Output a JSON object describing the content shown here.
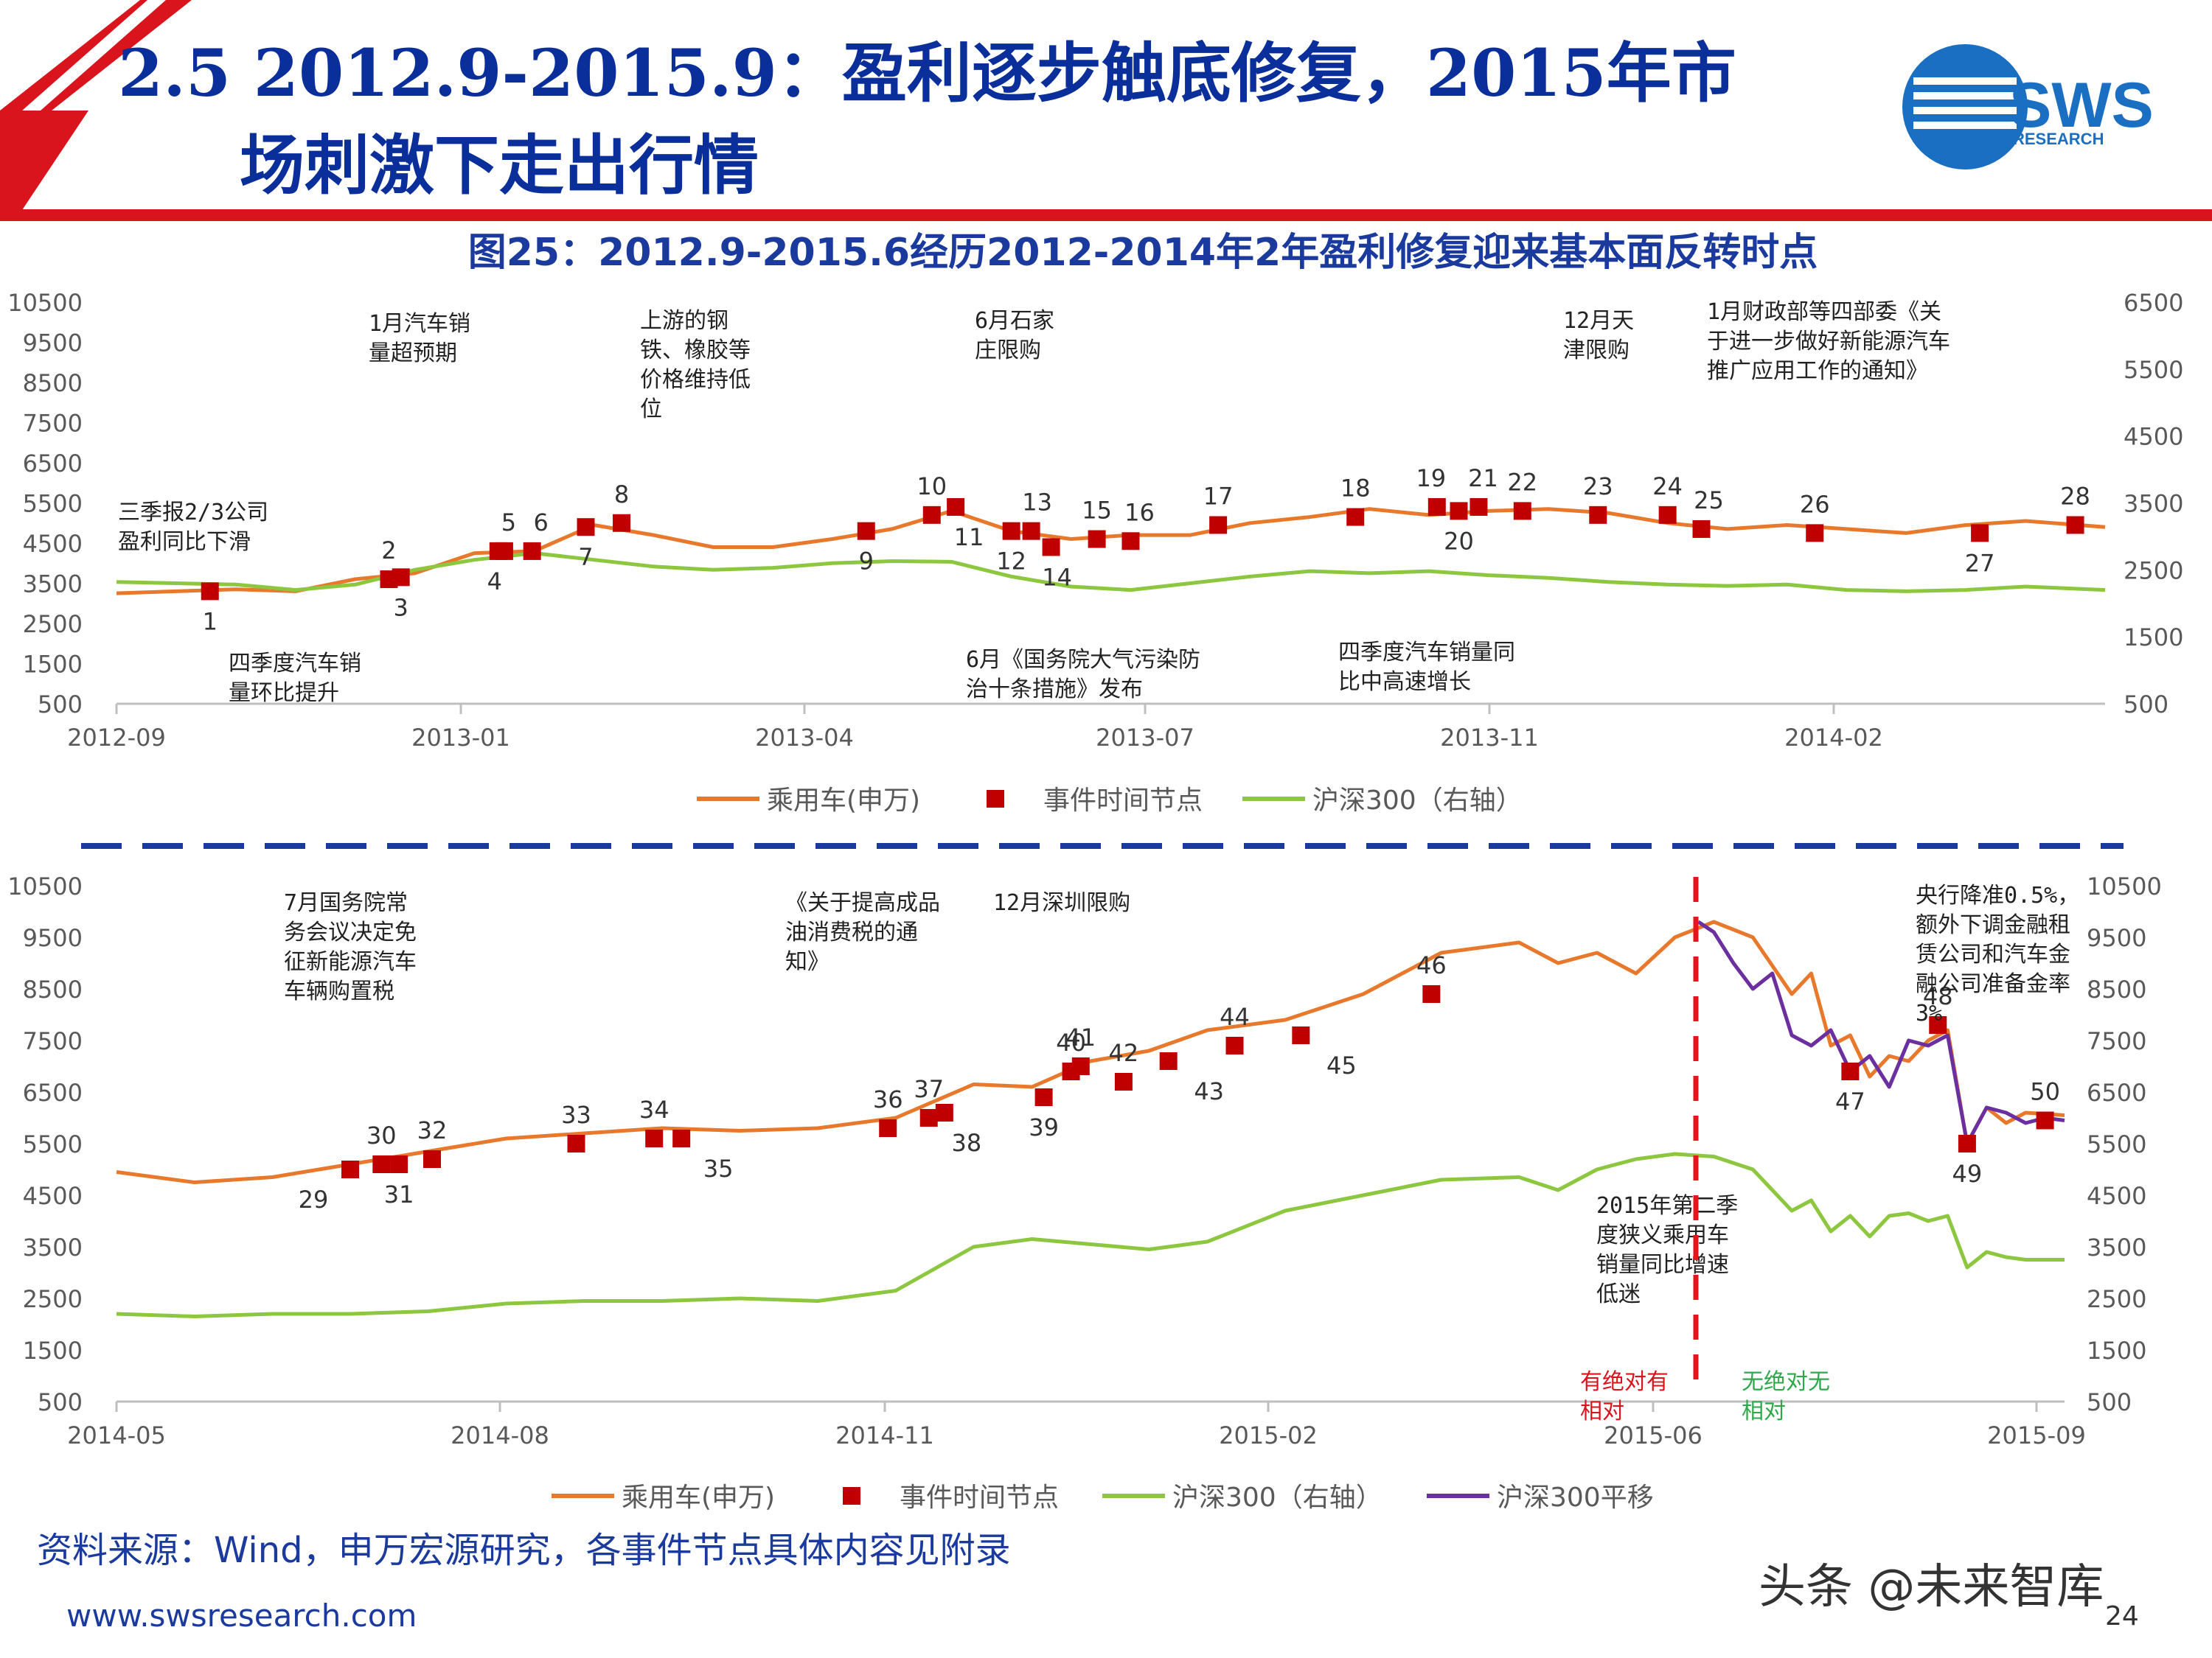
{
  "header": {
    "title_line1": "2.5 2012.9-2015.9：盈利逐步触底修复，2015年市",
    "title_line2": "场刺激下走出行情",
    "logo_text": "SWS",
    "logo_sub": "RESEARCH",
    "colors": {
      "red": "#d9141d",
      "blue": "#0a2f9b"
    }
  },
  "figure_title": "图25：2012.9-2015.6经历2012-2014年2年盈利修复迎来基本面反转时点",
  "source": "资料来源：Wind，申万宏源研究，各事件节点具体内容见附录",
  "website": "www.swsresearch.com",
  "page_number": "24",
  "watermark": "头条 @未来智库",
  "chart_data": [
    {
      "type": "line",
      "colors": {
        "car": "#e8792c",
        "hs300": "#8dc63f",
        "event": "#c00000"
      },
      "left_axis": {
        "ticks": [
          10500,
          9500,
          8500,
          7500,
          6500,
          5500,
          4500,
          3500,
          2500,
          1500,
          500
        ],
        "range": [
          500,
          10500
        ]
      },
      "right_axis": {
        "ticks": [
          6500,
          5500,
          4500,
          3500,
          2500,
          1500,
          500
        ],
        "range": [
          500,
          6500
        ]
      },
      "x_ticks": [
        "2012-09",
        "2013-01",
        "2013-04",
        "2013-07",
        "2013-11",
        "2014-02"
      ],
      "legend": [
        "乘用车(申万)",
        "事件时间节点",
        "沪深300（右轴）"
      ],
      "series": [
        {
          "name": "乘用车(申万)",
          "x": [
            0,
            0.03,
            0.06,
            0.09,
            0.12,
            0.15,
            0.18,
            0.21,
            0.24,
            0.27,
            0.3,
            0.33,
            0.36,
            0.39,
            0.42,
            0.45,
            0.48,
            0.51,
            0.54,
            0.57,
            0.6,
            0.63,
            0.66,
            0.69,
            0.72,
            0.75,
            0.78,
            0.81,
            0.84,
            0.87,
            0.9,
            0.93,
            0.96,
            1
          ],
          "y": [
            3250,
            3300,
            3350,
            3300,
            3600,
            3750,
            4250,
            4300,
            4950,
            4700,
            4400,
            4400,
            4600,
            4850,
            5300,
            4800,
            4600,
            4700,
            4700,
            5000,
            5150,
            5350,
            5200,
            5300,
            5350,
            5250,
            5000,
            4850,
            4950,
            4850,
            4750,
            4950,
            5050,
            4900
          ]
        },
        {
          "name": "沪深300（右轴）",
          "x": [
            0,
            0.03,
            0.06,
            0.09,
            0.12,
            0.15,
            0.18,
            0.21,
            0.24,
            0.27,
            0.3,
            0.33,
            0.36,
            0.39,
            0.42,
            0.45,
            0.48,
            0.51,
            0.54,
            0.57,
            0.6,
            0.63,
            0.66,
            0.69,
            0.72,
            0.75,
            0.78,
            0.81,
            0.84,
            0.87,
            0.9,
            0.93,
            0.96,
            1
          ],
          "y": [
            2320,
            2300,
            2280,
            2200,
            2280,
            2500,
            2650,
            2750,
            2650,
            2550,
            2500,
            2530,
            2600,
            2630,
            2620,
            2400,
            2250,
            2200,
            2300,
            2400,
            2480,
            2450,
            2480,
            2420,
            2380,
            2320,
            2280,
            2260,
            2280,
            2200,
            2180,
            2200,
            2250,
            2200
          ]
        }
      ],
      "events": [
        {
          "label": "1",
          "x": 0.047,
          "y": 3300
        },
        {
          "label": "2",
          "x": 0.137,
          "y": 3600
        },
        {
          "label": "3",
          "x": 0.143,
          "y": 3650
        },
        {
          "label": "4",
          "x": 0.192,
          "y": 4300
        },
        {
          "label": "5",
          "x": 0.195,
          "y": 4300
        },
        {
          "label": "6",
          "x": 0.209,
          "y": 4300
        },
        {
          "label": "7",
          "x": 0.236,
          "y": 4900
        },
        {
          "label": "8",
          "x": 0.254,
          "y": 5000
        },
        {
          "label": "9",
          "x": 0.377,
          "y": 4800
        },
        {
          "label": "10",
          "x": 0.41,
          "y": 5200
        },
        {
          "label": "11",
          "x": 0.422,
          "y": 5400
        },
        {
          "label": "12",
          "x": 0.45,
          "y": 4800
        },
        {
          "label": "13",
          "x": 0.46,
          "y": 4800
        },
        {
          "label": "14",
          "x": 0.47,
          "y": 4400
        },
        {
          "label": "15",
          "x": 0.493,
          "y": 4600
        },
        {
          "label": "16",
          "x": 0.51,
          "y": 4550
        },
        {
          "label": "17",
          "x": 0.554,
          "y": 4950
        },
        {
          "label": "18",
          "x": 0.623,
          "y": 5150
        },
        {
          "label": "19",
          "x": 0.664,
          "y": 5400
        },
        {
          "label": "20",
          "x": 0.675,
          "y": 5300
        },
        {
          "label": "21",
          "x": 0.685,
          "y": 5400
        },
        {
          "label": "22",
          "x": 0.707,
          "y": 5300
        },
        {
          "label": "23",
          "x": 0.745,
          "y": 5200
        },
        {
          "label": "24",
          "x": 0.78,
          "y": 5200
        },
        {
          "label": "25",
          "x": 0.797,
          "y": 4850
        },
        {
          "label": "26",
          "x": 0.854,
          "y": 4750
        },
        {
          "label": "27",
          "x": 0.937,
          "y": 4750
        },
        {
          "label": "28",
          "x": 0.985,
          "y": 4950
        }
      ],
      "annotations": [
        "1月汽车销\n量超预期",
        "上游的钢\n铁、橡胶等\n价格维持低\n位",
        "6月石家\n庄限购",
        "12月天\n津限购",
        "1月财政部等四部委《关\n于进一步做好新能源汽车\n推广应用工作的通知》",
        "三季报2/3公司\n盈利同比下滑",
        "四季度汽车销\n量环比提升",
        "6月《国务院大气污染防\n治十条措施》发布",
        "四季度汽车销量同\n比中高速增长"
      ]
    },
    {
      "type": "line",
      "colors": {
        "car": "#e8792c",
        "hs300": "#8dc63f",
        "hs300_shift": "#6b2fa0",
        "event": "#c00000",
        "divider": "#e8141d"
      },
      "left_axis": {
        "ticks": [
          10500,
          9500,
          8500,
          7500,
          6500,
          5500,
          4500,
          3500,
          2500,
          1500,
          500
        ],
        "range": [
          500,
          10500
        ]
      },
      "right_axis": {
        "ticks": [
          10500,
          9500,
          8500,
          7500,
          6500,
          5500,
          4500,
          3500,
          2500,
          1500,
          500
        ],
        "range": [
          500,
          10500
        ]
      },
      "x_ticks": [
        "2014-05",
        "2014-08",
        "2014-11",
        "2015-02",
        "2015-06",
        "2015-09"
      ],
      "legend": [
        "乘用车(申万)",
        "事件时间节点",
        "沪深300（右轴）",
        "沪深300平移"
      ],
      "series": [
        {
          "name": "乘用车(申万)",
          "x": [
            0,
            0.04,
            0.08,
            0.12,
            0.16,
            0.2,
            0.24,
            0.28,
            0.32,
            0.36,
            0.4,
            0.44,
            0.47,
            0.5,
            0.53,
            0.56,
            0.6,
            0.64,
            0.68,
            0.72,
            0.74,
            0.76,
            0.78,
            0.8,
            0.82,
            0.84,
            0.86,
            0.87,
            0.88,
            0.89,
            0.9,
            0.91,
            0.92,
            0.93,
            0.94,
            0.95,
            0.96,
            0.97,
            0.98,
            1
          ],
          "y": [
            4950,
            4750,
            4850,
            5100,
            5350,
            5600,
            5700,
            5800,
            5750,
            5800,
            6000,
            6650,
            6600,
            7100,
            7300,
            7700,
            7900,
            8400,
            9200,
            9400,
            9000,
            9200,
            8800,
            9500,
            9800,
            9500,
            8400,
            8800,
            7400,
            7600,
            6800,
            7200,
            7100,
            7500,
            7700,
            5500,
            6200,
            5900,
            6100,
            6050
          ]
        },
        {
          "name": "沪深300（右轴）",
          "x": [
            0,
            0.04,
            0.08,
            0.12,
            0.16,
            0.2,
            0.24,
            0.28,
            0.32,
            0.36,
            0.4,
            0.44,
            0.47,
            0.5,
            0.53,
            0.56,
            0.6,
            0.64,
            0.68,
            0.72,
            0.74,
            0.76,
            0.78,
            0.8,
            0.82,
            0.84,
            0.86,
            0.87,
            0.88,
            0.89,
            0.9,
            0.91,
            0.92,
            0.93,
            0.94,
            0.95,
            0.96,
            0.97,
            0.98,
            1
          ],
          "y": [
            2200,
            2150,
            2200,
            2200,
            2250,
            2400,
            2450,
            2450,
            2500,
            2450,
            2650,
            3500,
            3650,
            3550,
            3450,
            3600,
            4200,
            4500,
            4800,
            4850,
            4600,
            5000,
            5200,
            5300,
            5250,
            5000,
            4200,
            4400,
            3800,
            4100,
            3700,
            4100,
            4150,
            4000,
            4100,
            3100,
            3400,
            3300,
            3250,
            3250
          ]
        },
        {
          "name": "沪深300平移",
          "x": [
            0.812,
            0.82,
            0.83,
            0.84,
            0.85,
            0.86,
            0.87,
            0.88,
            0.89,
            0.9,
            0.91,
            0.92,
            0.93,
            0.94,
            0.95,
            0.96,
            0.97,
            0.98,
            0.99,
            1
          ],
          "y": [
            9800,
            9600,
            9000,
            8500,
            8800,
            7600,
            7400,
            7700,
            6900,
            7200,
            6600,
            7500,
            7400,
            7600,
            5500,
            6200,
            6100,
            5900,
            6000,
            5950
          ]
        }
      ],
      "events": [
        {
          "label": "29",
          "x": 0.12,
          "y": 5000
        },
        {
          "label": "30",
          "x": 0.136,
          "y": 5100
        },
        {
          "label": "31",
          "x": 0.145,
          "y": 5100
        },
        {
          "label": "32",
          "x": 0.162,
          "y": 5200
        },
        {
          "label": "33",
          "x": 0.236,
          "y": 5500
        },
        {
          "label": "34",
          "x": 0.276,
          "y": 5600
        },
        {
          "label": "35",
          "x": 0.29,
          "y": 5600
        },
        {
          "label": "36",
          "x": 0.396,
          "y": 5800
        },
        {
          "label": "37",
          "x": 0.417,
          "y": 6000
        },
        {
          "label": "38",
          "x": 0.425,
          "y": 6100
        },
        {
          "label": "39",
          "x": 0.476,
          "y": 6400
        },
        {
          "label": "40",
          "x": 0.49,
          "y": 6900
        },
        {
          "label": "41",
          "x": 0.495,
          "y": 7000
        },
        {
          "label": "42",
          "x": 0.517,
          "y": 6700
        },
        {
          "label": "43",
          "x": 0.54,
          "y": 7100
        },
        {
          "label": "44",
          "x": 0.574,
          "y": 7400
        },
        {
          "label": "45",
          "x": 0.608,
          "y": 7600
        },
        {
          "label": "46",
          "x": 0.675,
          "y": 8400
        },
        {
          "label": "47",
          "x": 0.89,
          "y": 6900
        },
        {
          "label": "48",
          "x": 0.935,
          "y": 7800
        },
        {
          "label": "49",
          "x": 0.95,
          "y": 5500
        },
        {
          "label": "50",
          "x": 0.99,
          "y": 5950
        }
      ],
      "divider_label": "2015-06",
      "annotations": [
        "7月国务院常\n务会议决定免\n征新能源汽车\n车辆购置税",
        "《关于提高成品\n油消费税的通\n知》",
        "12月深圳限购",
        "央行降准0.5%，\n额外下调金融租\n赁公司和汽车金\n融公司准备金率\n3%",
        "2015年第二季\n度狭义乘用车\n销量同比增速\n低迷"
      ],
      "regime_labels": {
        "left": "有绝对有\n相对",
        "right": "无绝对无\n相对"
      }
    }
  ]
}
